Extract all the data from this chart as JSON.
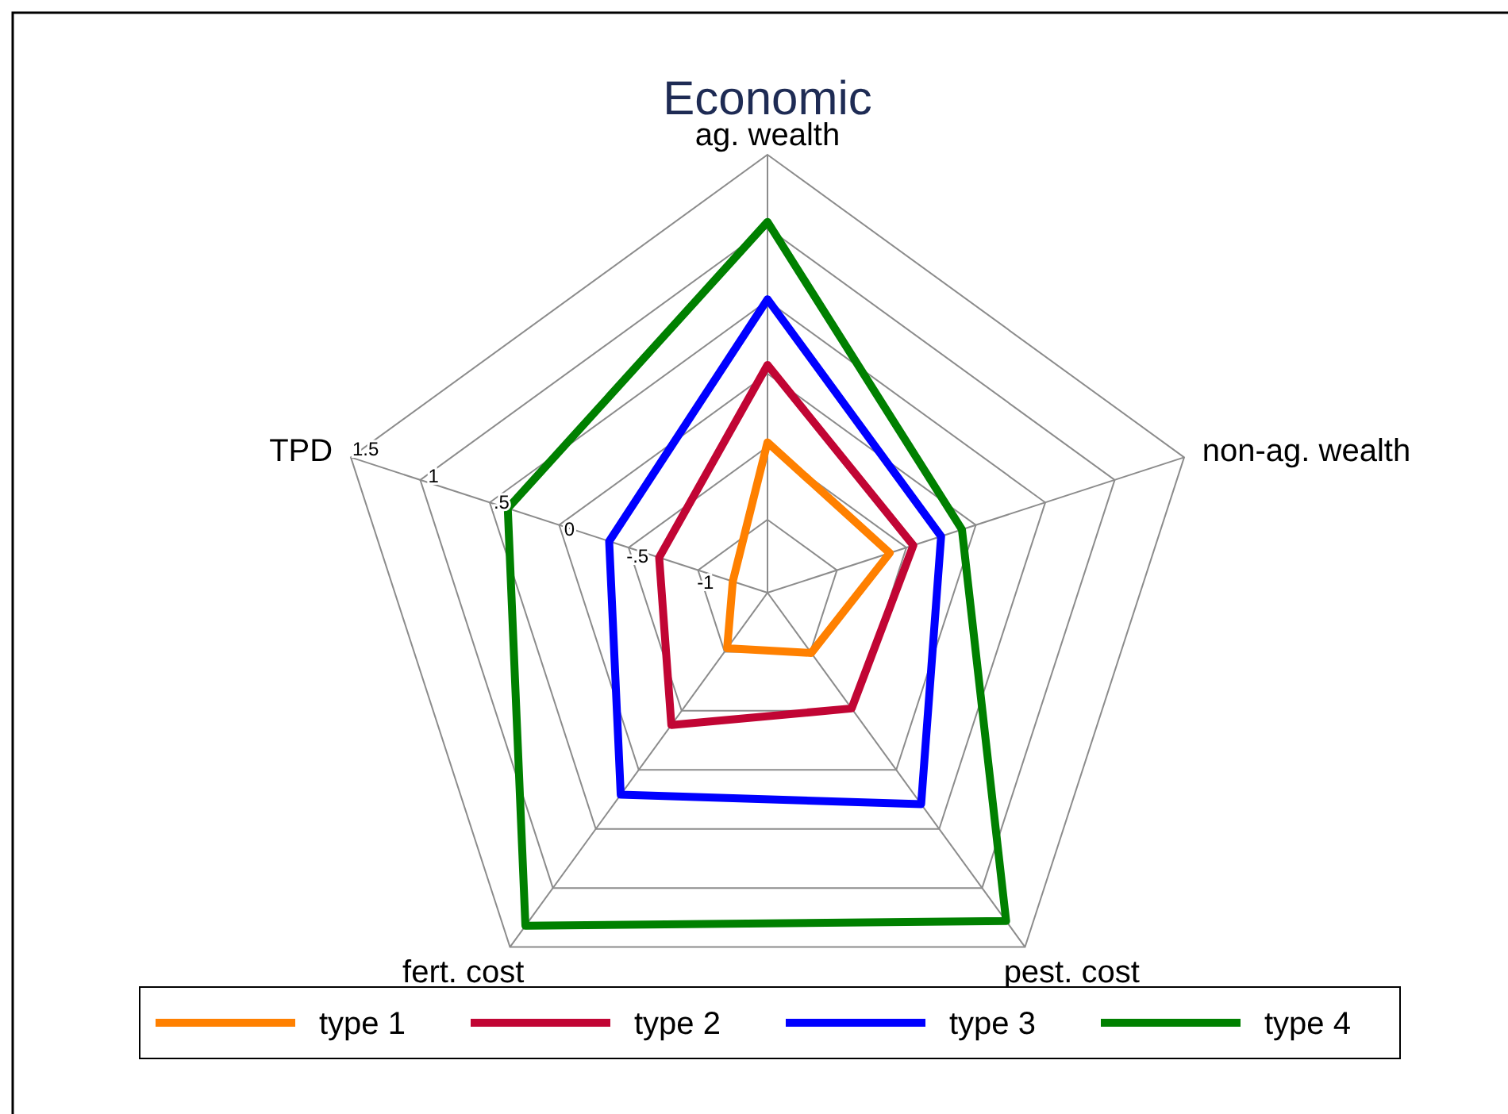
{
  "chart_data": {
    "type": "radar",
    "title": "Economic",
    "categories": [
      "ag. wealth",
      "non-ag. wealth",
      "pest. cost",
      "fert. cost",
      "TPD"
    ],
    "series": [
      {
        "name": "type 1",
        "color": "#ff8000",
        "values": [
          -0.47,
          -0.62,
          -0.99,
          -1.03,
          -1.25
        ]
      },
      {
        "name": "type 2",
        "color": "#c10534",
        "values": [
          0.06,
          -0.45,
          -0.52,
          -0.38,
          -0.72
        ]
      },
      {
        "name": "type 3",
        "color": "#0000ff",
        "values": [
          0.51,
          -0.25,
          0.29,
          0.21,
          -0.36
        ]
      },
      {
        "name": "type 4",
        "color": "#008000",
        "values": [
          1.04,
          -0.1,
          1.28,
          1.32,
          0.37
        ]
      }
    ],
    "ylim": [
      -1.5,
      1.5
    ],
    "yticks": [
      {
        "value": -1,
        "label": "-1"
      },
      {
        "value": -0.5,
        "label": "-.5"
      },
      {
        "value": 0,
        "label": "0"
      },
      {
        "value": 0.5,
        "label": ".5"
      },
      {
        "value": 1,
        "label": "1"
      },
      {
        "value": 1.5,
        "label": "1.5"
      }
    ],
    "grid": true,
    "legend": "bottom"
  }
}
